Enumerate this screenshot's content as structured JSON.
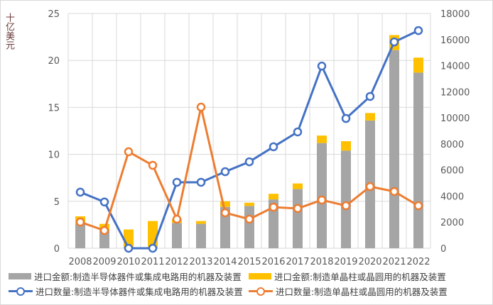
{
  "chart_data": {
    "type": "bar+line",
    "categories": [
      "2008",
      "2009",
      "2010",
      "2011",
      "2012",
      "2013",
      "2014",
      "2015",
      "2016",
      "2017",
      "2018",
      "2019",
      "2020",
      "2021",
      "2022"
    ],
    "ylabel": "十亿美元",
    "ylim": [
      0,
      25
    ],
    "yticks": [
      0,
      5,
      10,
      15,
      20,
      25
    ],
    "y2lim": [
      0,
      18000
    ],
    "y2ticks": [
      0,
      2000,
      4000,
      6000,
      8000,
      10000,
      12000,
      14000,
      16000,
      18000
    ],
    "grid": true,
    "legend_position": "bottom",
    "series": [
      {
        "name": "进口金额:制造半导体器件或集成电路用的机器及装置",
        "type": "stacked-bar",
        "axis": "left",
        "color": "#a5a5a5",
        "values": [
          2.6,
          1.9,
          0.1,
          0.1,
          2.7,
          2.6,
          4.4,
          4.5,
          5.2,
          6.3,
          11.2,
          10.4,
          13.6,
          21.1,
          18.7
        ]
      },
      {
        "name": "进口金额:制造单晶柱或晶圆用的机器及装置",
        "type": "stacked-bar",
        "axis": "left",
        "color": "#ffc000",
        "values": [
          0.8,
          0.7,
          1.9,
          2.8,
          0.4,
          0.3,
          0.6,
          0.35,
          0.6,
          0.6,
          0.8,
          1.0,
          0.8,
          1.6,
          1.6
        ]
      },
      {
        "name": "进口数量:制造半导体器件或集成电路用的机器及装置",
        "type": "line",
        "axis": "right",
        "color": "#4472c4",
        "values": [
          4300,
          3550,
          0,
          0,
          5060,
          5060,
          5870,
          6630,
          7780,
          8920,
          13970,
          9950,
          11640,
          15820,
          16690
        ]
      },
      {
        "name": "进口数量:制造单晶柱或晶圆用的机器及装置",
        "type": "line",
        "axis": "right",
        "color": "#ed7d31",
        "values": [
          2010,
          1360,
          7400,
          6360,
          2230,
          10820,
          2720,
          2230,
          3150,
          3050,
          3700,
          3260,
          4730,
          4350,
          3260
        ]
      }
    ]
  }
}
